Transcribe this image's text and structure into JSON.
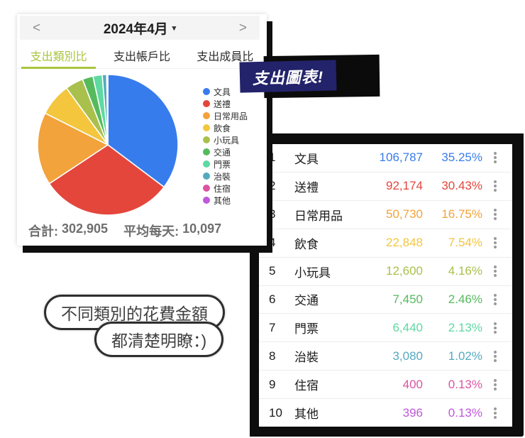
{
  "chart_card": {
    "date_nav": {
      "prev_icon": "<",
      "label": "2024年4月",
      "dropdown_icon": "▾",
      "next_icon": ">"
    },
    "tabs": [
      {
        "label": "支出類別比",
        "active": true
      },
      {
        "label": "支出帳戶比",
        "active": false
      },
      {
        "label": "支出成員比",
        "active": false
      }
    ],
    "active_tab_color": "#a9c53d",
    "summary": {
      "total_label": "合計:",
      "total_value": "302,905",
      "average_label": "平均每天:",
      "average_value": "10,097"
    }
  },
  "badge": {
    "label": "支出圖表!",
    "bg_color": "#23236b"
  },
  "chart_data": {
    "type": "pie",
    "title": "支出類別比",
    "categories": [
      "文具",
      "送禮",
      "日常用品",
      "飲食",
      "小玩具",
      "交通",
      "門票",
      "治裝",
      "住宿",
      "其他"
    ],
    "values": [
      106787,
      92174,
      50730,
      22848,
      12600,
      7450,
      6440,
      3080,
      400,
      396
    ],
    "percentages": [
      35.25,
      30.43,
      16.75,
      7.54,
      4.16,
      2.46,
      2.13,
      1.02,
      0.13,
      0.13
    ],
    "colors": [
      "#377CEC",
      "#E4463C",
      "#F2A33B",
      "#F3C63E",
      "#A9C04C",
      "#56BA5D",
      "#5ED9A2",
      "#55A9BF",
      "#DB54A3",
      "#BF58DB"
    ],
    "total": 302905,
    "daily_average": 10097,
    "legend_position": "right",
    "start_angle_deg": 0,
    "direction": "clockwise"
  },
  "table": {
    "rows": [
      {
        "rank": "1",
        "name": "文具",
        "value": "106,787",
        "percent": "35.25%"
      },
      {
        "rank": "2",
        "name": "送禮",
        "value": "92,174",
        "percent": "30.43%"
      },
      {
        "rank": "3",
        "name": "日常用品",
        "value": "50,730",
        "percent": "16.75%"
      },
      {
        "rank": "4",
        "name": "飲食",
        "value": "22,848",
        "percent": "7.54%"
      },
      {
        "rank": "5",
        "name": "小玩具",
        "value": "12,600",
        "percent": "4.16%"
      },
      {
        "rank": "6",
        "name": "交通",
        "value": "7,450",
        "percent": "2.46%"
      },
      {
        "rank": "7",
        "name": "門票",
        "value": "6,440",
        "percent": "2.13%"
      },
      {
        "rank": "8",
        "name": "治裝",
        "value": "3,080",
        "percent": "1.02%"
      },
      {
        "rank": "9",
        "name": "住宿",
        "value": "400",
        "percent": "0.13%"
      },
      {
        "rank": "10",
        "name": "其他",
        "value": "396",
        "percent": "0.13%"
      }
    ]
  },
  "speech_bubbles": {
    "line1": "不同類別的花費金額",
    "line2": "都清楚明瞭：)"
  }
}
